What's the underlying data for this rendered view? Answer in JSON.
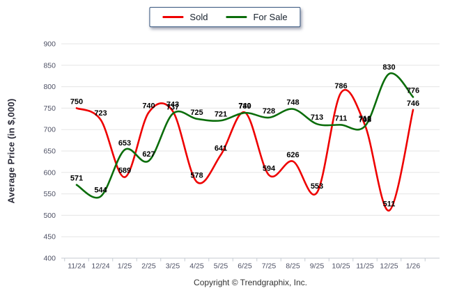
{
  "y_axis_title": "Average Price (in $,000)",
  "footer": "Copyright © Trendgraphix, Inc.",
  "colors": {
    "background": "#ffffff",
    "grid": "#e5e5e5",
    "axis": "#c4cad2",
    "tick_text": "#4c4f63",
    "data_label": "#000000",
    "sold": "#ee0000",
    "for_sale": "#0b6d0b",
    "legend_border": "#35557d"
  },
  "chart_data": {
    "type": "line",
    "title": "",
    "xlabel": "",
    "ylabel": "Average Price (in $,000)",
    "categories": [
      "11/24",
      "12/24",
      "1/25",
      "2/25",
      "3/25",
      "4/25",
      "5/25",
      "6/25",
      "7/25",
      "8/25",
      "9/25",
      "10/25",
      "11/25",
      "12/25",
      "1/26"
    ],
    "series": [
      {
        "name": "Sold",
        "color": "#ee0000",
        "values": [
          750,
          723,
          589,
          740,
          743,
          578,
          641,
          740,
          594,
          626,
          553,
          786,
          710,
          511,
          746
        ]
      },
      {
        "name": "For Sale",
        "color": "#0b6d0b",
        "values": [
          571,
          544,
          653,
          627,
          737,
          725,
          721,
          739,
          728,
          748,
          713,
          711,
          708,
          830,
          776
        ]
      }
    ],
    "ylim": [
      400,
      900
    ],
    "ytick_step": 50,
    "yticks": [
      400,
      450,
      500,
      550,
      600,
      650,
      700,
      750,
      800,
      850,
      900
    ],
    "grid": true,
    "smooth": true,
    "point_labels": true,
    "legend_position": "top-center"
  }
}
